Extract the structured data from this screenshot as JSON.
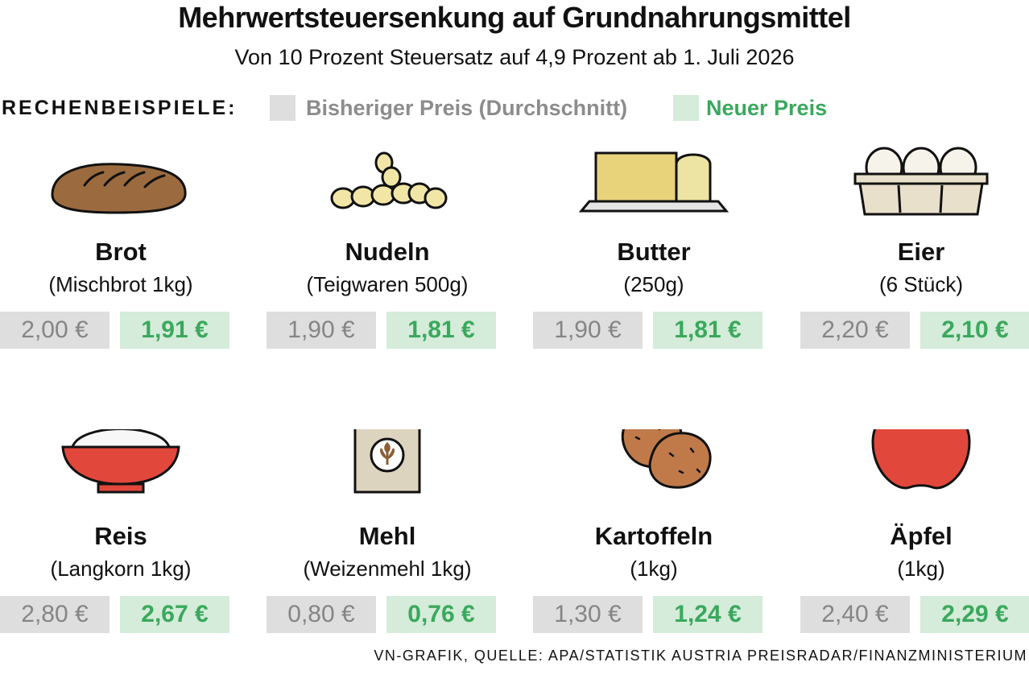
{
  "title": "Mehrwertsteuersenkung auf Grundnahrungsmittel",
  "subtitle": "Von 10 Prozent Steuersatz auf 4,9 Prozent ab 1. Juli 2026",
  "legend": {
    "heading": "RECHENBEISPIELE:",
    "old_label": "Bisheriger Preis (Durchschnitt)",
    "new_label": "Neuer Preis",
    "old_color": "#dedede",
    "new_color": "#d4ecd9",
    "accent_green": "#3aa85d"
  },
  "items": [
    {
      "icon": "bread-icon",
      "name": "Brot",
      "detail": "(Mischbrot 1kg)",
      "old_price": "2,00 €",
      "new_price": "1,91 €"
    },
    {
      "icon": "pasta-icon",
      "name": "Nudeln",
      "detail": "(Teigwaren 500g)",
      "old_price": "1,90 €",
      "new_price": "1,81 €"
    },
    {
      "icon": "butter-icon",
      "name": "Butter",
      "detail": "(250g)",
      "old_price": "1,90 €",
      "new_price": "1,81 €"
    },
    {
      "icon": "eggs-icon",
      "name": "Eier",
      "detail": "(6 Stück)",
      "old_price": "2,20 €",
      "new_price": "2,10 €"
    },
    {
      "icon": "rice-bowl-icon",
      "name": "Reis",
      "detail": "(Langkorn 1kg)",
      "old_price": "2,80 €",
      "new_price": "2,67 €"
    },
    {
      "icon": "flour-bag-icon",
      "name": "Mehl",
      "detail": "(Weizenmehl 1kg)",
      "old_price": "0,80 €",
      "new_price": "0,76 €"
    },
    {
      "icon": "potatoes-icon",
      "name": "Kartoffeln",
      "detail": "(1kg)",
      "old_price": "1,30 €",
      "new_price": "1,24 €"
    },
    {
      "icon": "apple-icon",
      "name": "Äpfel",
      "detail": "(1kg)",
      "old_price": "2,40 €",
      "new_price": "2,29 €"
    }
  ],
  "source": "VN-GRAFIK, QUELLE: APA/STATISTIK AUSTRIA PREISRADAR/FINANZMINISTERIUM"
}
